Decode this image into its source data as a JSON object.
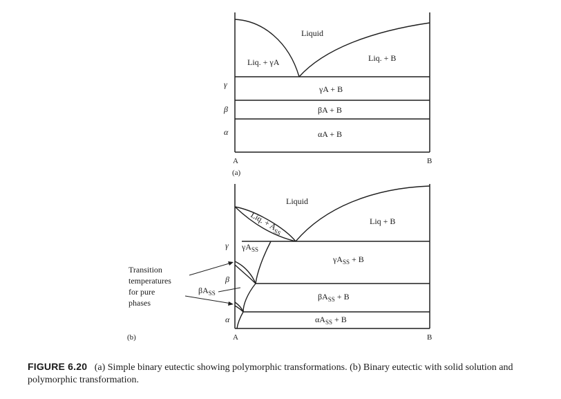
{
  "diagram_a": {
    "regions": {
      "liquid": "Liquid",
      "liq_gamma_a": "Liq. + γA",
      "liq_b": "Liq. + B",
      "gamma_a_b": "γA + B",
      "beta_a_b": "βA + B",
      "alpha_a_b": "αA + B"
    },
    "temperature_labels": {
      "gamma": "γ",
      "beta": "β",
      "alpha": "α"
    },
    "axis": {
      "left": "A",
      "right": "B"
    },
    "panel_label": "(a)"
  },
  "diagram_b": {
    "regions": {
      "liquid": "Liquid",
      "liq_ass": "Liq. + A",
      "liq_ass_sub": "SS",
      "liq_b": "Liq + B",
      "gamma_ass": "γA",
      "gamma_ass_b": "γA",
      "beta_ass": "βA",
      "beta_ass_b": "βA",
      "alpha_ass_b": "αA",
      "ss_sub": "SS",
      "plus_b": " + B"
    },
    "temperature_labels": {
      "gamma": "γ",
      "beta": "β",
      "alpha": "α"
    },
    "axis": {
      "left": "A",
      "right": "B"
    },
    "callout": [
      "Transition",
      "temperatures",
      "for pure",
      "phases"
    ],
    "panel_label": "(b)"
  },
  "caption": {
    "label": "FIGURE 6.20",
    "text": "(a) Simple binary eutectic showing polymorphic transformations. (b) Binary eutectic with solid solution and polymorphic transformation."
  }
}
